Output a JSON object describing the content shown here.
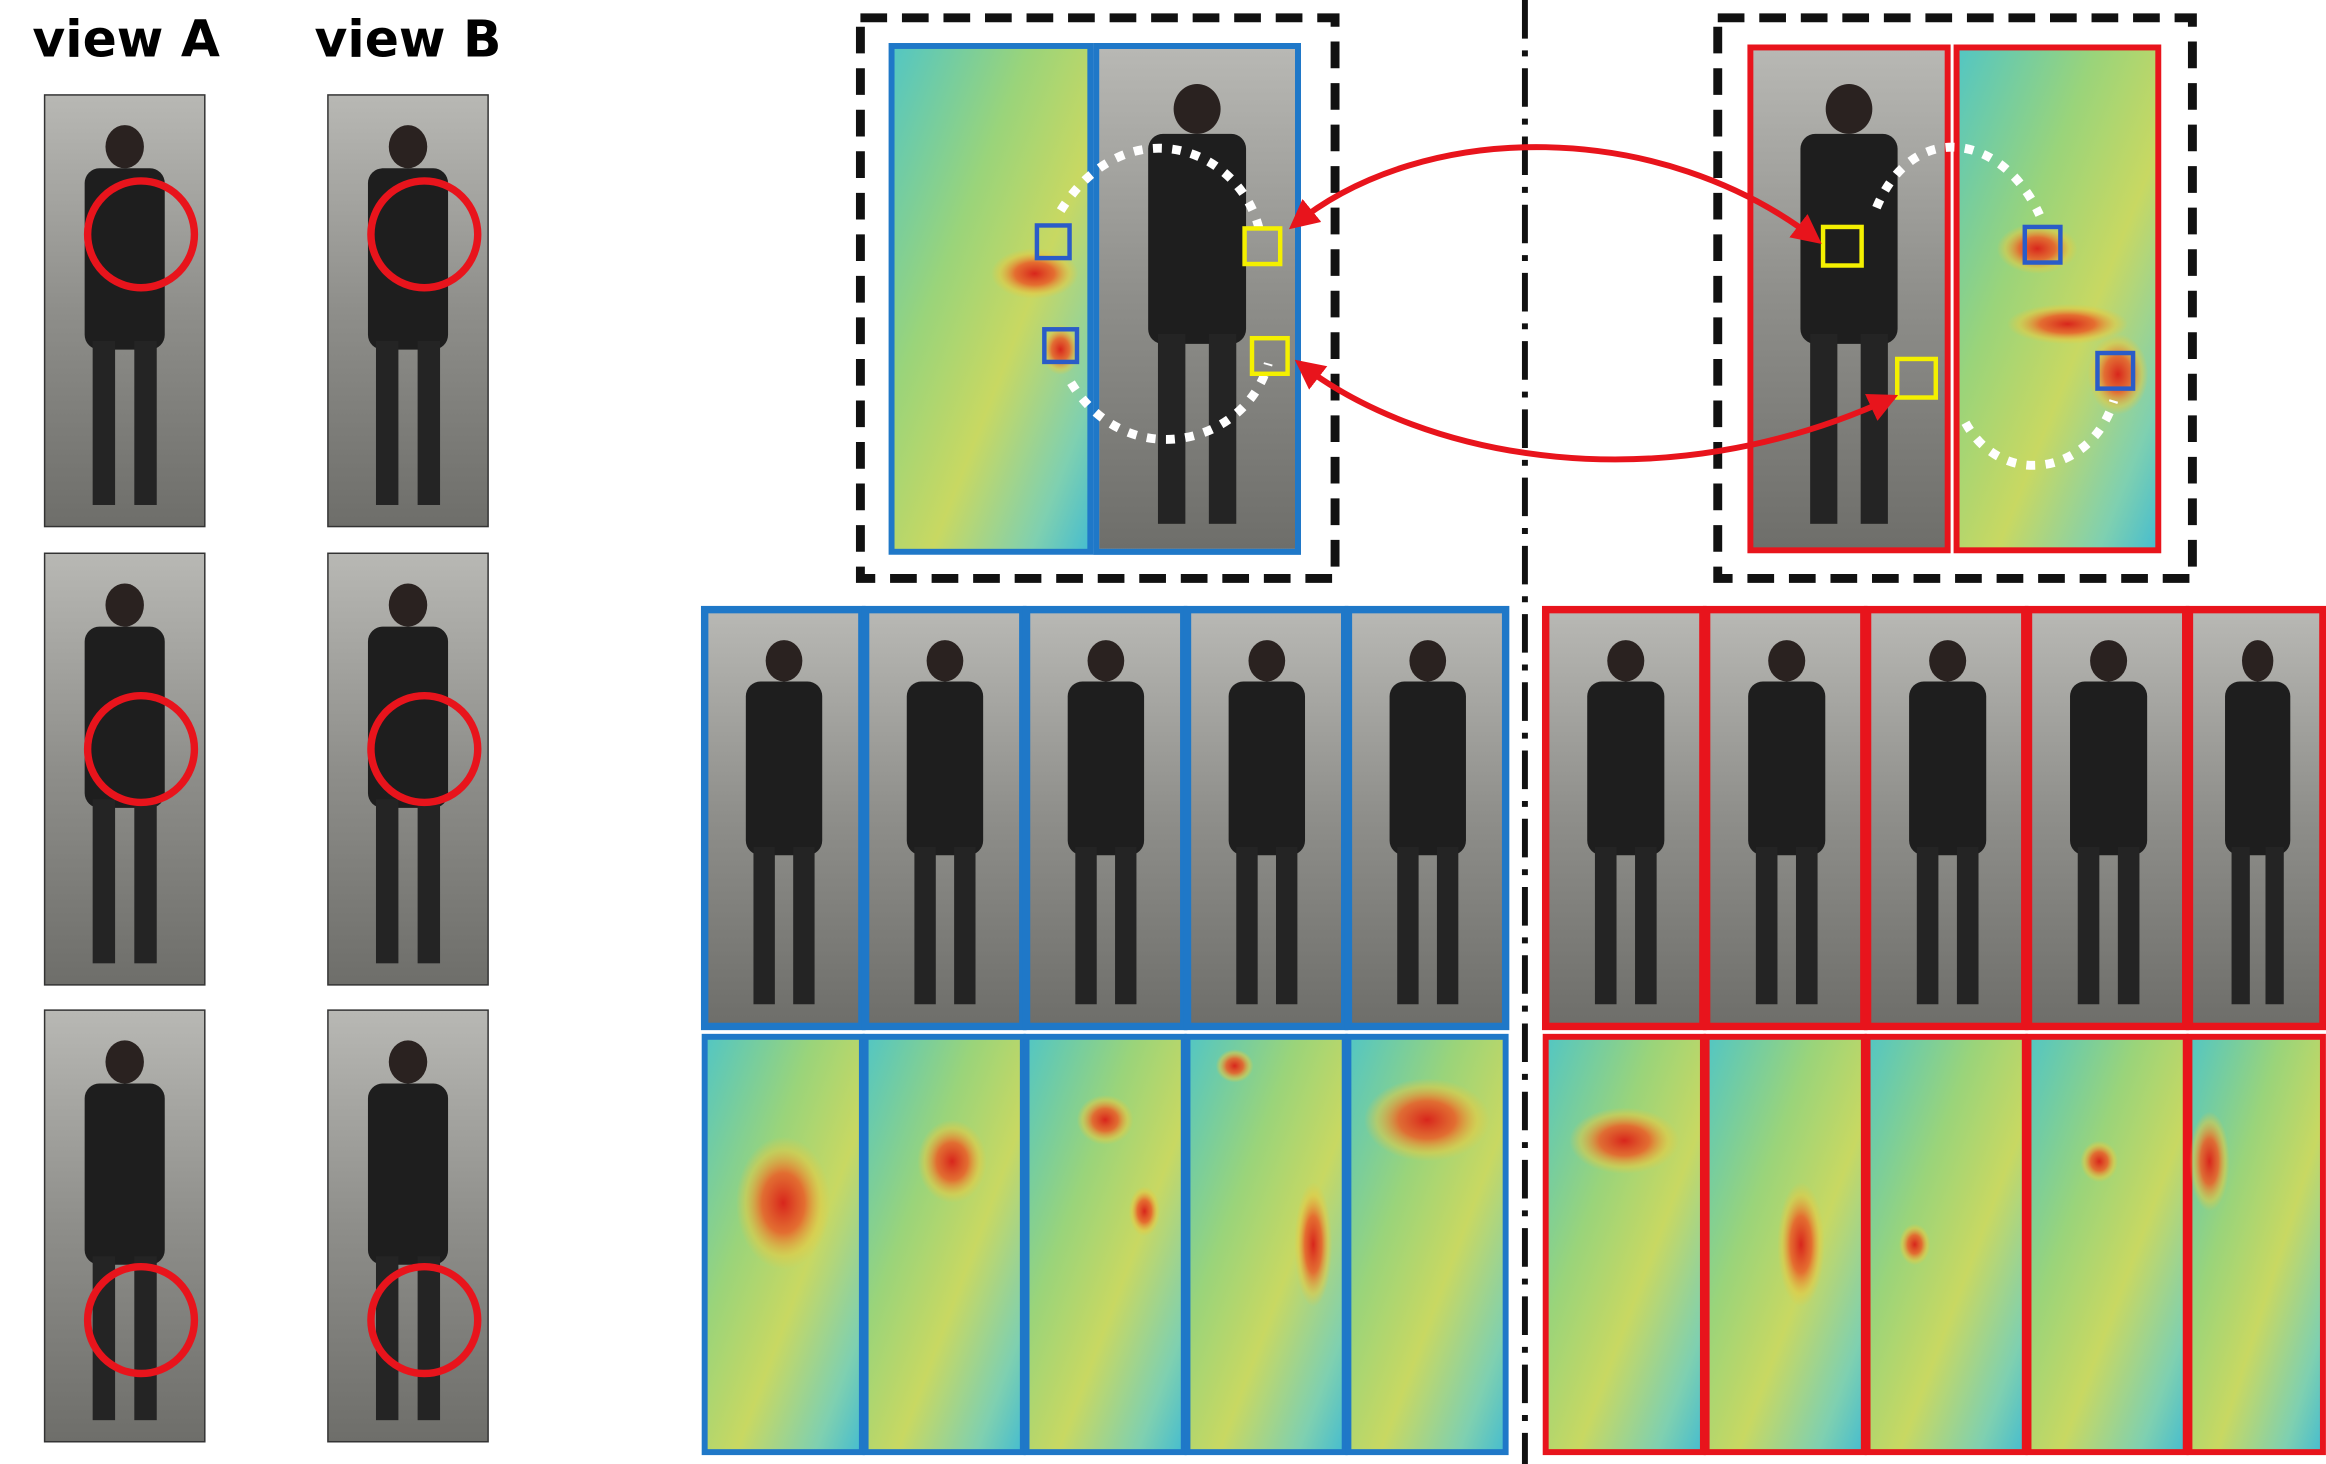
{
  "column_labels": [
    "view A",
    "view B"
  ]
}
